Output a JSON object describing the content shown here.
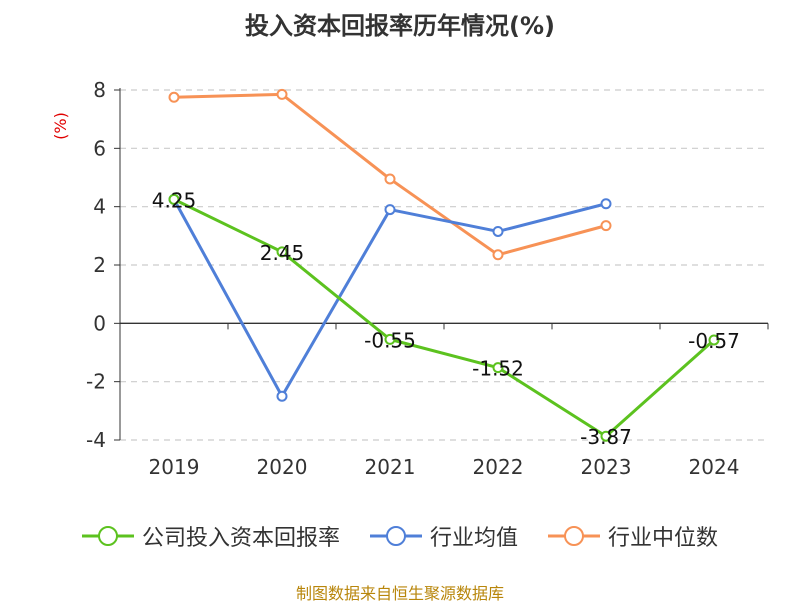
{
  "title": "投入资本回报率历年情况(%)",
  "source": "制图数据来自恒生聚源数据库",
  "colors": {
    "company": "#5cc21f",
    "industry_avg": "#4f7fd8",
    "industry_median": "#f79256",
    "axis": "#333333",
    "grid": "#cccccc",
    "unit": "#e00000"
  },
  "chart_data": {
    "type": "line",
    "title": "投入资本回报率历年情况(%)",
    "ylabel": "(%)",
    "xlabel": "",
    "ylim": [
      -4,
      8
    ],
    "yticks": [
      -4,
      -2,
      0,
      2,
      4,
      6,
      8
    ],
    "grid": true,
    "legend_position": "bottom",
    "categories": [
      "2019",
      "2020",
      "2021",
      "2022",
      "2023",
      "2024"
    ],
    "series": [
      {
        "name": "公司投入资本回报率",
        "values": [
          4.25,
          2.45,
          -0.55,
          -1.52,
          -3.87,
          -0.57
        ],
        "labels": [
          "4.25",
          "2.45",
          "-0.55",
          "-1.52",
          "-3.87",
          "-0.57"
        ]
      },
      {
        "name": "行业均值",
        "values": [
          4.25,
          -2.5,
          3.9,
          3.15,
          4.1,
          null
        ]
      },
      {
        "name": "行业中位数",
        "values": [
          7.75,
          7.85,
          4.95,
          2.35,
          3.35,
          null
        ]
      }
    ]
  }
}
